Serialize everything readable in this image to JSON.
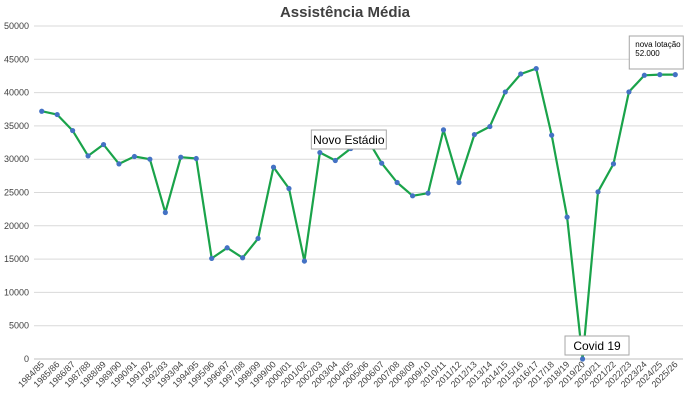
{
  "chart_data": {
    "type": "line",
    "title": "Assistência Média",
    "xlabel": "",
    "ylabel": "",
    "ylim": [
      0,
      50000
    ],
    "y_ticks": [
      0,
      5000,
      10000,
      15000,
      20000,
      25000,
      30000,
      35000,
      40000,
      45000,
      50000
    ],
    "grid": true,
    "legend": "none",
    "categories": [
      "1984/85",
      "1985/86",
      "1986/87",
      "1987/88",
      "1988/89",
      "1989/90",
      "1990/91",
      "1991/92",
      "1992/93",
      "1993/94",
      "1994/95",
      "1995/96",
      "1996/97",
      "1997/98",
      "1998/99",
      "1999/00",
      "2000/01",
      "2001/02",
      "2002/03",
      "2003/04",
      "2004/05",
      "2005/06",
      "2006/07",
      "2007/08",
      "2008/09",
      "2009/10",
      "2010/11",
      "2011/12",
      "2012/13",
      "2013/14",
      "2014/15",
      "2015/16",
      "2016/17",
      "2017/18",
      "2018/19",
      "2019/20",
      "2020/21",
      "2021/22",
      "2022/23",
      "2023/24",
      "2024/25",
      "2025/26"
    ],
    "series": [
      {
        "values": [
          37200,
          36700,
          34300,
          30500,
          32200,
          29300,
          30400,
          30000,
          22000,
          30300,
          30100,
          15100,
          16700,
          15200,
          18100,
          28800,
          25600,
          14700,
          31000,
          29800,
          31600,
          33300,
          29400,
          26500,
          24500,
          24900,
          34400,
          26500,
          33700,
          34900,
          40100,
          42800,
          43600,
          33600,
          21300,
          0,
          25100,
          29300,
          40100,
          42600,
          42700,
          42700
        ]
      }
    ],
    "colors": {
      "line": "#1aa34a",
      "marker": "#4472c4"
    },
    "annotations": [
      {
        "id": "novo-estadio",
        "lines": [
          "Novo Estádio"
        ],
        "category": "2003/04"
      },
      {
        "id": "covid",
        "lines": [
          "Covid 19"
        ],
        "category": "2020/21"
      },
      {
        "id": "nova-lotacao",
        "lines": [
          "nova lotação",
          "52.000"
        ],
        "category": "2025/26"
      }
    ]
  }
}
